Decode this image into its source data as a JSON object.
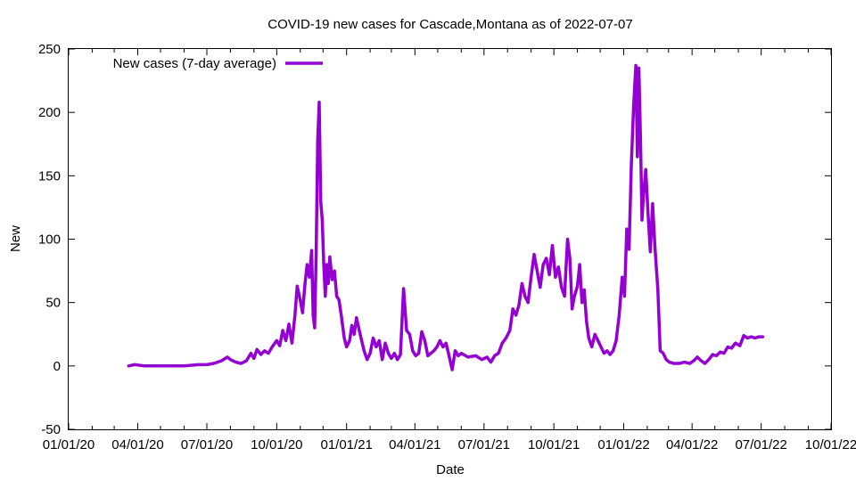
{
  "chart_data": {
    "type": "line",
    "title": "COVID-19 new cases for Cascade,Montana as of 2022-07-07",
    "xlabel": "Date",
    "ylabel": "New",
    "ylim": [
      -50,
      250
    ],
    "yticks": [
      -50,
      0,
      50,
      100,
      150,
      200,
      250
    ],
    "xlim": [
      "2020-01-01",
      "2022-10-01"
    ],
    "xticks": [
      {
        "date": "2020-01-01",
        "label": "01/01/20"
      },
      {
        "date": "2020-04-01",
        "label": "04/01/20"
      },
      {
        "date": "2020-07-01",
        "label": "07/01/20"
      },
      {
        "date": "2020-10-01",
        "label": "10/01/20"
      },
      {
        "date": "2021-01-01",
        "label": "01/01/21"
      },
      {
        "date": "2021-04-01",
        "label": "04/01/21"
      },
      {
        "date": "2021-07-01",
        "label": "07/01/21"
      },
      {
        "date": "2021-10-01",
        "label": "10/01/21"
      },
      {
        "date": "2022-01-01",
        "label": "01/01/22"
      },
      {
        "date": "2022-04-01",
        "label": "04/01/22"
      },
      {
        "date": "2022-07-01",
        "label": "07/01/22"
      },
      {
        "date": "2022-10-01",
        "label": "10/01/22"
      }
    ],
    "legend": {
      "position": "top-left"
    },
    "series": [
      {
        "name": "New cases (7-day average)",
        "color": "#9400d3",
        "points": [
          [
            "2020-03-20",
            0
          ],
          [
            "2020-03-28",
            1
          ],
          [
            "2020-04-10",
            0
          ],
          [
            "2020-05-01",
            0
          ],
          [
            "2020-06-01",
            0
          ],
          [
            "2020-06-20",
            1
          ],
          [
            "2020-07-01",
            1
          ],
          [
            "2020-07-10",
            2
          ],
          [
            "2020-07-20",
            4
          ],
          [
            "2020-07-28",
            7
          ],
          [
            "2020-08-01",
            5
          ],
          [
            "2020-08-08",
            3
          ],
          [
            "2020-08-15",
            2
          ],
          [
            "2020-08-22",
            4
          ],
          [
            "2020-08-28",
            10
          ],
          [
            "2020-09-01",
            6
          ],
          [
            "2020-09-05",
            13
          ],
          [
            "2020-09-10",
            9
          ],
          [
            "2020-09-15",
            12
          ],
          [
            "2020-09-20",
            10
          ],
          [
            "2020-09-25",
            15
          ],
          [
            "2020-10-01",
            20
          ],
          [
            "2020-10-05",
            16
          ],
          [
            "2020-10-09",
            28
          ],
          [
            "2020-10-13",
            20
          ],
          [
            "2020-10-17",
            33
          ],
          [
            "2020-10-21",
            18
          ],
          [
            "2020-10-25",
            40
          ],
          [
            "2020-10-28",
            63
          ],
          [
            "2020-11-01",
            52
          ],
          [
            "2020-11-04",
            42
          ],
          [
            "2020-11-07",
            63
          ],
          [
            "2020-11-10",
            80
          ],
          [
            "2020-11-13",
            70
          ],
          [
            "2020-11-16",
            91
          ],
          [
            "2020-11-18",
            40
          ],
          [
            "2020-11-20",
            30
          ],
          [
            "2020-11-22",
            90
          ],
          [
            "2020-11-24",
            178
          ],
          [
            "2020-11-26",
            208
          ],
          [
            "2020-11-28",
            130
          ],
          [
            "2020-11-30",
            115
          ],
          [
            "2020-12-02",
            80
          ],
          [
            "2020-12-04",
            55
          ],
          [
            "2020-12-06",
            80
          ],
          [
            "2020-12-08",
            65
          ],
          [
            "2020-12-10",
            86
          ],
          [
            "2020-12-13",
            68
          ],
          [
            "2020-12-16",
            75
          ],
          [
            "2020-12-19",
            55
          ],
          [
            "2020-12-22",
            52
          ],
          [
            "2020-12-25",
            40
          ],
          [
            "2020-12-29",
            22
          ],
          [
            "2021-01-01",
            15
          ],
          [
            "2021-01-05",
            20
          ],
          [
            "2021-01-08",
            32
          ],
          [
            "2021-01-11",
            25
          ],
          [
            "2021-01-14",
            38
          ],
          [
            "2021-01-17",
            30
          ],
          [
            "2021-01-20",
            22
          ],
          [
            "2021-01-24",
            12
          ],
          [
            "2021-01-28",
            5
          ],
          [
            "2021-02-01",
            10
          ],
          [
            "2021-02-05",
            22
          ],
          [
            "2021-02-09",
            15
          ],
          [
            "2021-02-13",
            20
          ],
          [
            "2021-02-17",
            5
          ],
          [
            "2021-02-21",
            18
          ],
          [
            "2021-02-25",
            10
          ],
          [
            "2021-03-01",
            6
          ],
          [
            "2021-03-05",
            10
          ],
          [
            "2021-03-09",
            5
          ],
          [
            "2021-03-13",
            9
          ],
          [
            "2021-03-17",
            61
          ],
          [
            "2021-03-21",
            28
          ],
          [
            "2021-03-25",
            25
          ],
          [
            "2021-03-29",
            12
          ],
          [
            "2021-04-02",
            8
          ],
          [
            "2021-04-06",
            10
          ],
          [
            "2021-04-10",
            27
          ],
          [
            "2021-04-14",
            20
          ],
          [
            "2021-04-18",
            8
          ],
          [
            "2021-04-22",
            10
          ],
          [
            "2021-04-26",
            12
          ],
          [
            "2021-04-30",
            15
          ],
          [
            "2021-05-04",
            20
          ],
          [
            "2021-05-08",
            15
          ],
          [
            "2021-05-12",
            18
          ],
          [
            "2021-05-16",
            8
          ],
          [
            "2021-05-20",
            -3
          ],
          [
            "2021-05-24",
            12
          ],
          [
            "2021-05-28",
            8
          ],
          [
            "2021-06-01",
            10
          ],
          [
            "2021-06-10",
            7
          ],
          [
            "2021-06-20",
            8
          ],
          [
            "2021-06-28",
            5
          ],
          [
            "2021-07-05",
            7
          ],
          [
            "2021-07-10",
            3
          ],
          [
            "2021-07-15",
            8
          ],
          [
            "2021-07-20",
            10
          ],
          [
            "2021-07-25",
            18
          ],
          [
            "2021-07-30",
            22
          ],
          [
            "2021-08-04",
            28
          ],
          [
            "2021-08-08",
            45
          ],
          [
            "2021-08-12",
            40
          ],
          [
            "2021-08-16",
            48
          ],
          [
            "2021-08-20",
            65
          ],
          [
            "2021-08-24",
            55
          ],
          [
            "2021-08-28",
            50
          ],
          [
            "2021-09-01",
            70
          ],
          [
            "2021-09-05",
            88
          ],
          [
            "2021-09-09",
            75
          ],
          [
            "2021-09-13",
            62
          ],
          [
            "2021-09-17",
            80
          ],
          [
            "2021-09-21",
            85
          ],
          [
            "2021-09-25",
            72
          ],
          [
            "2021-09-29",
            95
          ],
          [
            "2021-10-03",
            70
          ],
          [
            "2021-10-07",
            78
          ],
          [
            "2021-10-11",
            62
          ],
          [
            "2021-10-15",
            55
          ],
          [
            "2021-10-19",
            100
          ],
          [
            "2021-10-22",
            85
          ],
          [
            "2021-10-25",
            45
          ],
          [
            "2021-10-28",
            55
          ],
          [
            "2021-11-01",
            63
          ],
          [
            "2021-11-04",
            80
          ],
          [
            "2021-11-07",
            50
          ],
          [
            "2021-11-10",
            60
          ],
          [
            "2021-11-13",
            35
          ],
          [
            "2021-11-16",
            22
          ],
          [
            "2021-11-20",
            15
          ],
          [
            "2021-11-24",
            25
          ],
          [
            "2021-11-28",
            20
          ],
          [
            "2021-12-02",
            15
          ],
          [
            "2021-12-06",
            10
          ],
          [
            "2021-12-10",
            12
          ],
          [
            "2021-12-14",
            9
          ],
          [
            "2021-12-18",
            12
          ],
          [
            "2021-12-22",
            20
          ],
          [
            "2021-12-26",
            40
          ],
          [
            "2021-12-30",
            70
          ],
          [
            "2022-01-02",
            55
          ],
          [
            "2022-01-05",
            108
          ],
          [
            "2022-01-08",
            92
          ],
          [
            "2022-01-11",
            158
          ],
          [
            "2022-01-14",
            205
          ],
          [
            "2022-01-17",
            237
          ],
          [
            "2022-01-19",
            165
          ],
          [
            "2022-01-21",
            235
          ],
          [
            "2022-01-23",
            180
          ],
          [
            "2022-01-25",
            115
          ],
          [
            "2022-01-27",
            135
          ],
          [
            "2022-01-30",
            155
          ],
          [
            "2022-02-02",
            120
          ],
          [
            "2022-02-05",
            90
          ],
          [
            "2022-02-08",
            128
          ],
          [
            "2022-02-11",
            95
          ],
          [
            "2022-02-15",
            60
          ],
          [
            "2022-02-18",
            12
          ],
          [
            "2022-02-22",
            10
          ],
          [
            "2022-02-26",
            5
          ],
          [
            "2022-03-02",
            3
          ],
          [
            "2022-03-08",
            2
          ],
          [
            "2022-03-15",
            2
          ],
          [
            "2022-03-22",
            3
          ],
          [
            "2022-03-29",
            2
          ],
          [
            "2022-04-03",
            4
          ],
          [
            "2022-04-08",
            7
          ],
          [
            "2022-04-13",
            4
          ],
          [
            "2022-04-18",
            2
          ],
          [
            "2022-04-23",
            5
          ],
          [
            "2022-04-28",
            9
          ],
          [
            "2022-05-03",
            8
          ],
          [
            "2022-05-08",
            11
          ],
          [
            "2022-05-13",
            10
          ],
          [
            "2022-05-18",
            15
          ],
          [
            "2022-05-23",
            14
          ],
          [
            "2022-05-28",
            18
          ],
          [
            "2022-06-03",
            16
          ],
          [
            "2022-06-08",
            24
          ],
          [
            "2022-06-13",
            22
          ],
          [
            "2022-06-18",
            23
          ],
          [
            "2022-06-23",
            22
          ],
          [
            "2022-06-28",
            23
          ],
          [
            "2022-07-03",
            23
          ]
        ]
      }
    ]
  }
}
